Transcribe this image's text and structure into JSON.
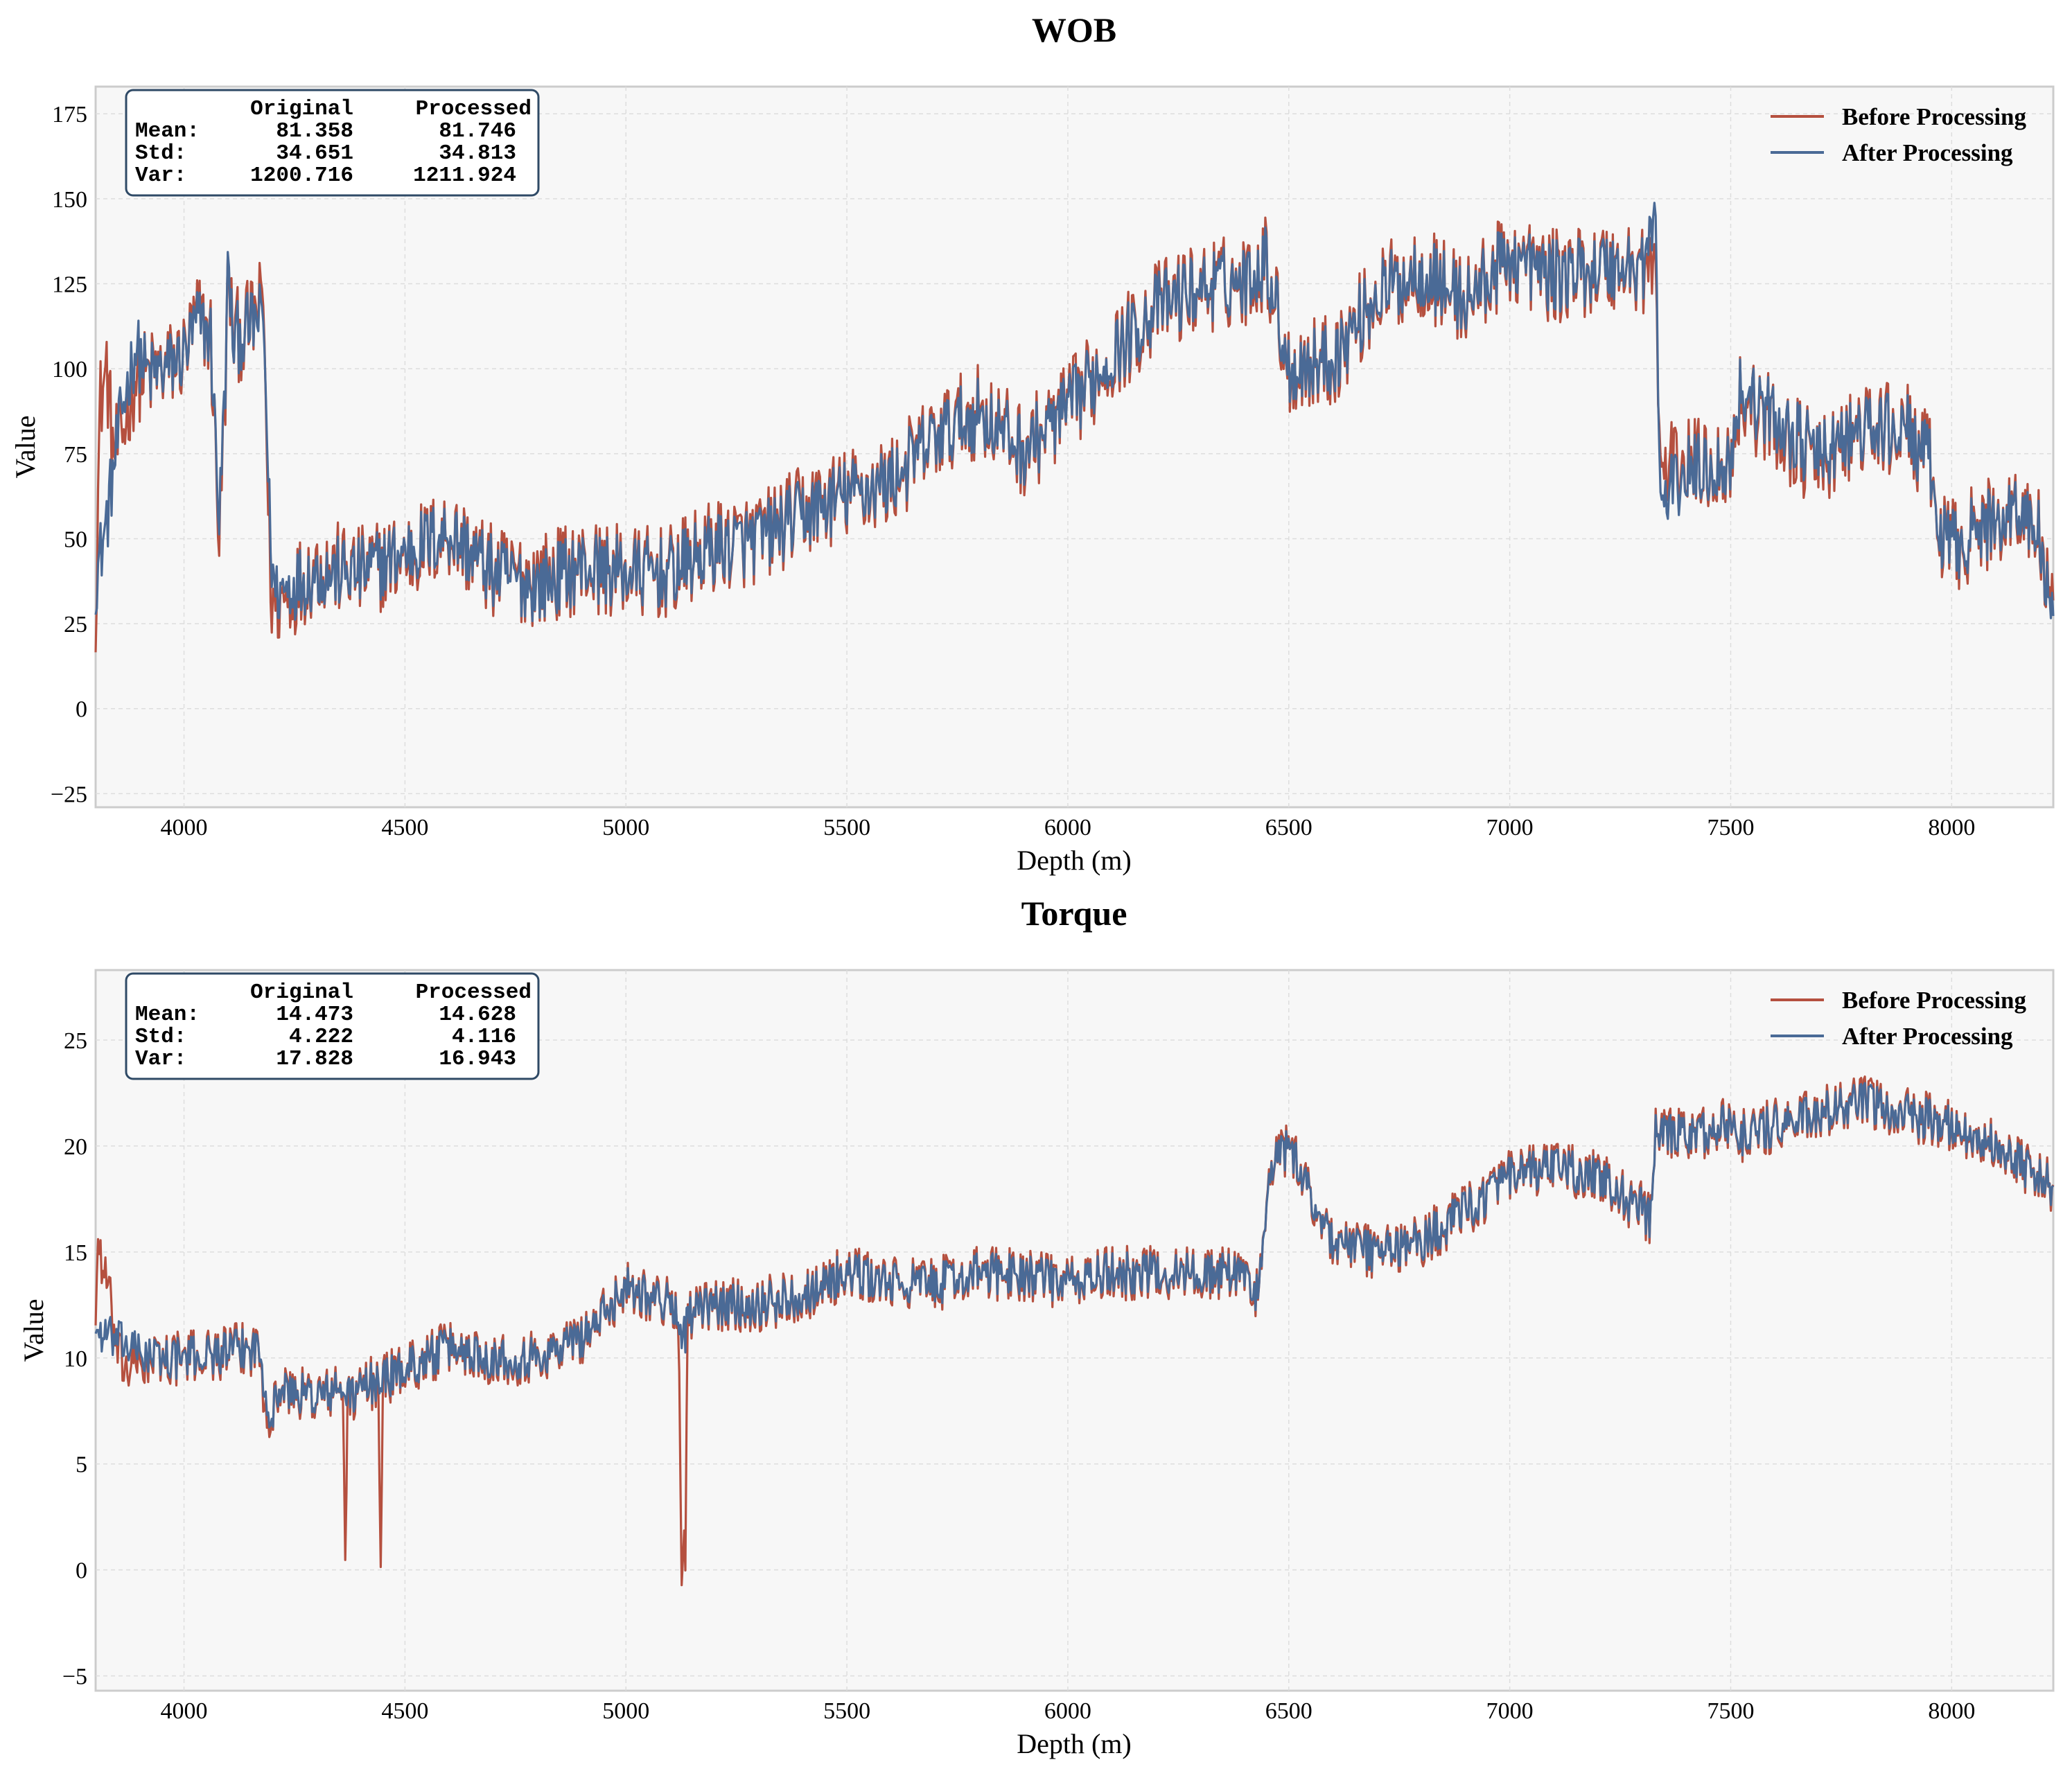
{
  "colors": {
    "before": "#b5503f",
    "after": "#4a6a96",
    "panel_bg": "#f7f7f7",
    "grid": "#dddddd",
    "axis": "#cccccc",
    "stats_border": "#2f4a66"
  },
  "chart_data": [
    {
      "type": "line",
      "title": "WOB",
      "xlabel": "Depth (m)",
      "ylabel": "Value",
      "xlim": [
        3800,
        8230
      ],
      "ylim": [
        -29,
        183
      ],
      "xticks": [
        4000,
        4500,
        5000,
        5500,
        6000,
        6500,
        7000,
        7500,
        8000
      ],
      "yticks": [
        -25,
        0,
        25,
        50,
        75,
        100,
        125,
        150,
        175
      ],
      "legend": {
        "position": "top-right",
        "entries": [
          "Before Processing",
          "After Processing"
        ]
      },
      "stats": {
        "columns": [
          "Original",
          "Processed"
        ],
        "rows": [
          {
            "label": "Mean:",
            "original": "81.358",
            "processed": "81.746"
          },
          {
            "label": "Std:",
            "original": "34.651",
            "processed": "34.813"
          },
          {
            "label": "Var:",
            "original": "1200.716",
            "processed": "1211.924"
          }
        ]
      },
      "series": [
        {
          "name": "Before Processing",
          "noise": 14,
          "x": [
            3800,
            3810,
            3825,
            3840,
            3860,
            3890,
            3920,
            3960,
            4000,
            4030,
            4060,
            4080,
            4095,
            4100,
            4110,
            4130,
            4160,
            4180,
            4195,
            4205,
            4300,
            4400,
            4500,
            4600,
            4700,
            4800,
            4900,
            5000,
            5100,
            5200,
            5300,
            5400,
            5500,
            5600,
            5700,
            5800,
            5900,
            6000,
            6100,
            6200,
            6300,
            6400,
            6450,
            6500,
            6600,
            6700,
            6800,
            6900,
            7000,
            7100,
            7200,
            7300,
            7330,
            7340,
            7400,
            7500,
            7520,
            7700,
            7800,
            7900,
            7950,
            7970,
            8000,
            8100,
            8150,
            8200,
            8230
          ],
          "y": [
            30,
            90,
            100,
            75,
            80,
            98,
            98,
            100,
            104,
            115,
            110,
            50,
            100,
            130,
            110,
            110,
            115,
            120,
            35,
            30,
            42,
            40,
            45,
            52,
            40,
            38,
            42,
            40,
            40,
            48,
            50,
            58,
            63,
            67,
            80,
            88,
            76,
            88,
            104,
            118,
            124,
            126,
            132,
            100,
            103,
            122,
            129,
            120,
            133,
            127,
            130,
            130,
            130,
            70,
            72,
            72,
            92,
            72,
            82,
            82,
            72,
            52,
            48,
            55,
            60,
            50,
            25
          ]
        },
        {
          "name": "After Processing",
          "noise": 12,
          "x": [
            3800,
            3810,
            3825,
            3840,
            3860,
            3890,
            3920,
            3960,
            4000,
            4030,
            4060,
            4080,
            4095,
            4100,
            4110,
            4130,
            4160,
            4180,
            4195,
            4205,
            4300,
            4400,
            4500,
            4600,
            4700,
            4800,
            4900,
            5000,
            5100,
            5200,
            5300,
            5400,
            5500,
            5600,
            5700,
            5800,
            5900,
            6000,
            6100,
            6200,
            6300,
            6400,
            6450,
            6500,
            6600,
            6700,
            6800,
            6900,
            7000,
            7100,
            7200,
            7300,
            7330,
            7340,
            7400,
            7500,
            7520,
            7700,
            7800,
            7900,
            7950,
            7970,
            8000,
            8100,
            8150,
            8200,
            8230
          ],
          "y": [
            38,
            45,
            55,
            70,
            88,
            106,
            98,
            100,
            104,
            114,
            110,
            55,
            102,
            133,
            108,
            110,
            114,
            115,
            50,
            34,
            40,
            40,
            46,
            52,
            40,
            36,
            42,
            40,
            40,
            47,
            50,
            57,
            63,
            67,
            80,
            87,
            76,
            88,
            104,
            118,
            124,
            126,
            132,
            100,
            103,
            122,
            129,
            120,
            133,
            127,
            130,
            130,
            145,
            60,
            70,
            72,
            94,
            74,
            82,
            82,
            72,
            52,
            48,
            55,
            60,
            50,
            22
          ]
        }
      ]
    },
    {
      "type": "line",
      "title": "Torque",
      "xlabel": "Depth (m)",
      "ylabel": "Value",
      "xlim": [
        3800,
        8230
      ],
      "ylim": [
        -5.7,
        28.3
      ],
      "xticks": [
        4000,
        4500,
        5000,
        5500,
        6000,
        6500,
        7000,
        7500,
        8000
      ],
      "yticks": [
        -5,
        0,
        5,
        10,
        15,
        20,
        25
      ],
      "legend": {
        "position": "top-right",
        "entries": [
          "Before Processing",
          "After Processing"
        ]
      },
      "stats": {
        "columns": [
          "Original",
          "Processed"
        ],
        "rows": [
          {
            "label": "Mean:",
            "original": "14.473",
            "processed": "14.628"
          },
          {
            "label": "Std:",
            "original": "4.222",
            "processed": "4.116"
          },
          {
            "label": "Var:",
            "original": "17.828",
            "processed": "16.943"
          }
        ]
      },
      "series": [
        {
          "name": "Before Processing",
          "noise": 1.3,
          "x": [
            3800,
            3805,
            3830,
            3850,
            3870,
            3900,
            3950,
            4000,
            4100,
            4170,
            4180,
            4200,
            4210,
            4300,
            4360,
            4365,
            4370,
            4400,
            4440,
            4445,
            4450,
            4500,
            4600,
            4700,
            4800,
            4900,
            4950,
            5000,
            5100,
            5120,
            5125,
            5135,
            5140,
            5200,
            5300,
            5400,
            5500,
            5600,
            5700,
            5800,
            5900,
            6000,
            6100,
            6200,
            6300,
            6400,
            6430,
            6460,
            6500,
            6520,
            6600,
            6700,
            6800,
            6900,
            7000,
            7100,
            7200,
            7300,
            7320,
            7330,
            7400,
            7500,
            7520,
            7700,
            7800,
            8000,
            8100,
            8230
          ],
          "y": [
            12,
            15.5,
            13,
            10,
            9.5,
            9.8,
            10,
            10,
            10.3,
            10.5,
            8.5,
            7,
            8.5,
            8.2,
            8.5,
            0.5,
            8,
            8.5,
            9,
            0.5,
            9,
            9.5,
            10.5,
            10,
            10,
            11,
            12,
            13.5,
            12.5,
            12,
            0.5,
            1,
            12,
            12.5,
            12.5,
            13,
            14,
            13.5,
            13.5,
            14,
            14,
            13.5,
            14,
            14,
            14,
            14,
            13,
            19,
            20,
            19,
            15.5,
            15,
            15.5,
            17,
            18.5,
            19,
            18.5,
            17,
            16.5,
            20.5,
            20.5,
            21,
            20.5,
            21.5,
            22,
            21,
            20,
            18
          ]
        },
        {
          "name": "After Processing",
          "noise": 1.1,
          "x": [
            3800,
            3805,
            3830,
            3850,
            3870,
            3900,
            3950,
            4000,
            4100,
            4170,
            4180,
            4200,
            4210,
            4300,
            4360,
            4365,
            4370,
            4400,
            4440,
            4445,
            4450,
            4500,
            4600,
            4700,
            4800,
            4900,
            4950,
            5000,
            5100,
            5120,
            5125,
            5135,
            5140,
            5200,
            5300,
            5400,
            5500,
            5600,
            5700,
            5800,
            5900,
            6000,
            6100,
            6200,
            6300,
            6400,
            6430,
            6460,
            6500,
            6520,
            6600,
            6700,
            6800,
            6900,
            7000,
            7100,
            7200,
            7300,
            7320,
            7330,
            7400,
            7500,
            7520,
            7700,
            7800,
            8000,
            8100,
            8230
          ],
          "y": [
            11.5,
            11.2,
            11,
            10.8,
            10.6,
            10.2,
            10,
            10,
            10.3,
            10.5,
            9,
            7,
            8.5,
            8.2,
            8.5,
            8.4,
            8.2,
            8.5,
            9,
            9,
            9,
            9.5,
            10.5,
            10,
            10,
            11,
            12,
            13.5,
            12.5,
            12,
            11.5,
            11,
            12,
            12.5,
            12.5,
            13,
            14,
            13.5,
            13.5,
            14,
            14,
            13.5,
            14,
            14,
            14,
            14,
            13,
            19,
            20,
            19,
            15.5,
            15,
            15.5,
            17,
            18.5,
            19,
            18.5,
            17,
            16.5,
            20.5,
            20.5,
            21,
            20.5,
            21.5,
            22,
            21,
            20,
            18
          ]
        }
      ]
    }
  ]
}
